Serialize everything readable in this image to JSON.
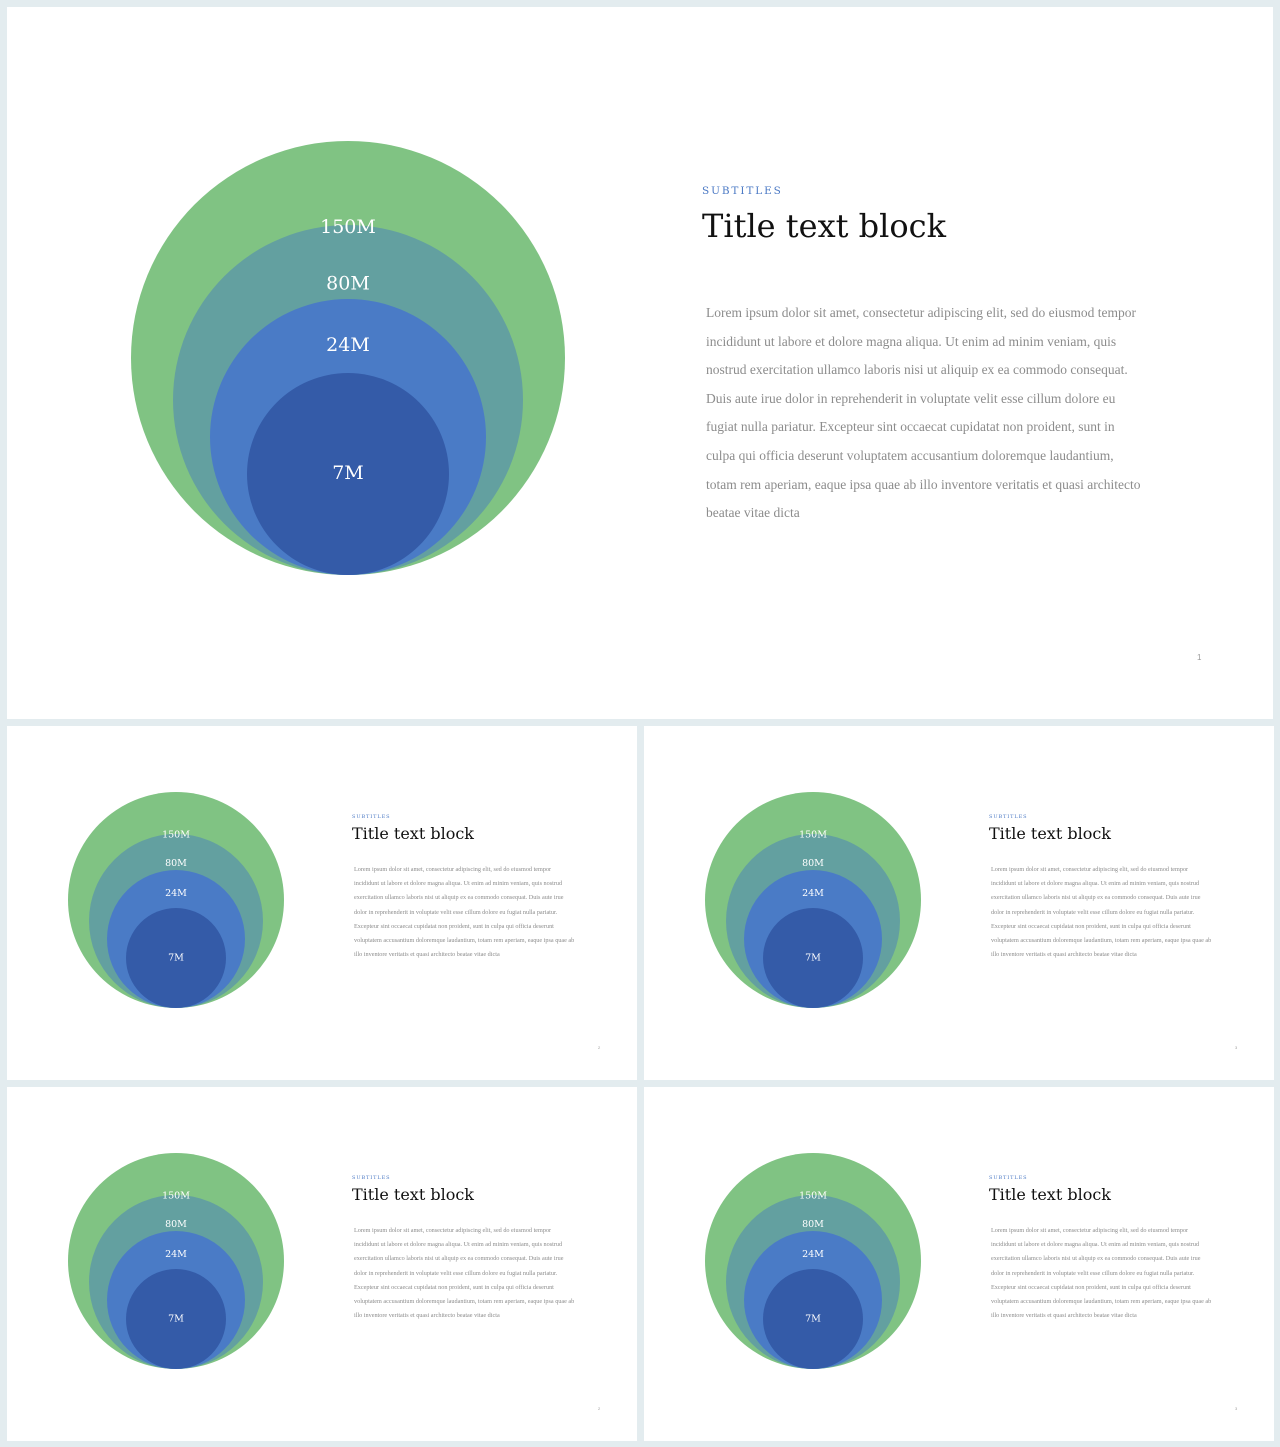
{
  "colors": {
    "ring_150m": "#80c383",
    "ring_80m": "#63a0a0",
    "ring_24m": "#4a7bc6",
    "ring_7m": "#345ba8",
    "subtitle": "#4a78c4",
    "background": "#e3ecef"
  },
  "diagram": {
    "rings": [
      {
        "label": "150M",
        "value": 150
      },
      {
        "label": "80M",
        "value": 80
      },
      {
        "label": "24M",
        "value": 24
      },
      {
        "label": "7M",
        "value": 7
      }
    ]
  },
  "slides": [
    {
      "subtitle": "SUBTITLES",
      "title": "Title text block",
      "body": "Lorem ipsum dolor sit amet, consectetur adipiscing elit, sed do eiusmod tempor incididunt ut labore et dolore magna aliqua. Ut enim ad minim veniam, quis nostrud exercitation ullamco laboris nisi ut aliquip ex ea commodo consequat. Duis aute irue dolor in reprehenderit in voluptate velit esse cillum dolore eu fugiat nulla pariatur. Excepteur sint occaecat cupidatat non proident, sunt in culpa qui officia deserunt voluptatem accusantium doloremque laudantium, totam rem aperiam, eaque ipsa quae ab illo inventore veritatis et quasi architecto beatae vitae dicta",
      "page": "1"
    },
    {
      "subtitle": "SUBTITLES",
      "title": "Title text block",
      "body": "Lorem ipsum dolor sit amet, consectetur adipiscing elit, sed do eiusmod tempor incididunt ut labore et dolore magna aliqua. Ut enim ad minim veniam, quis nostrud exercitation ullamco laboris nisi ut aliquip ex ea commodo consequat. Duis aute irue dolor in reprehenderit in voluptate velit esse cillum dolore eu fugiat nulla pariatur. Excepteur sint occaecat cupidatat non proident, sunt in culpa qui officia deserunt voluptatem accusantium doloremque laudantium, totam rem aperiam, eaque ipsa quae ab illo inventore veritatis et quasi architecto beatae vitae dicta",
      "page": "2"
    },
    {
      "subtitle": "SUBTITLES",
      "title": "Title text block",
      "body": "Lorem ipsum dolor sit amet, consectetur adipiscing elit, sed do eiusmod tempor incididunt ut labore et dolore magna aliqua. Ut enim ad minim veniam, quis nostrud exercitation ullamco laboris nisi ut aliquip ex ea commodo consequat. Duis aute irue dolor in reprehenderit in voluptate velit esse cillum dolore eu fugiat nulla pariatur. Excepteur sint occaecat cupidatat non proident, sunt in culpa qui officia deserunt voluptatem accusantium doloremque laudantium, totam rem aperiam, eaque ipsa quae ab illo inventore veritatis et quasi architecto beatae vitae dicta",
      "page": "3"
    },
    {
      "subtitle": "SUBTITLES",
      "title": "Title text block",
      "body": "Lorem ipsum dolor sit amet, consectetur adipiscing elit, sed do eiusmod tempor incididunt ut labore et dolore magna aliqua. Ut enim ad minim veniam, quis nostrud exercitation ullamco laboris nisi ut aliquip ex ea commodo consequat. Duis aute irue dolor in reprehenderit in voluptate velit esse cillum dolore eu fugiat nulla pariatur. Excepteur sint occaecat cupidatat non proident, sunt in culpa qui officia deserunt voluptatem accusantium doloremque laudantium, totam rem aperiam, eaque ipsa quae ab illo inventore veritatis et quasi architecto beatae vitae dicta",
      "page": "2"
    },
    {
      "subtitle": "SUBTITLES",
      "title": "Title text block",
      "body": "Lorem ipsum dolor sit amet, consectetur adipiscing elit, sed do eiusmod tempor incididunt ut labore et dolore magna aliqua. Ut enim ad minim veniam, quis nostrud exercitation ullamco laboris nisi ut aliquip ex ea commodo consequat. Duis aute irue dolor in reprehenderit in voluptate velit esse cillum dolore eu fugiat nulla pariatur. Excepteur sint occaecat cupidatat non proident, sunt in culpa qui officia deserunt voluptatem accusantium doloremque laudantium, totam rem aperiam, eaque ipsa quae ab illo inventore veritatis et quasi architecto beatae vitae dicta",
      "page": "3"
    }
  ]
}
